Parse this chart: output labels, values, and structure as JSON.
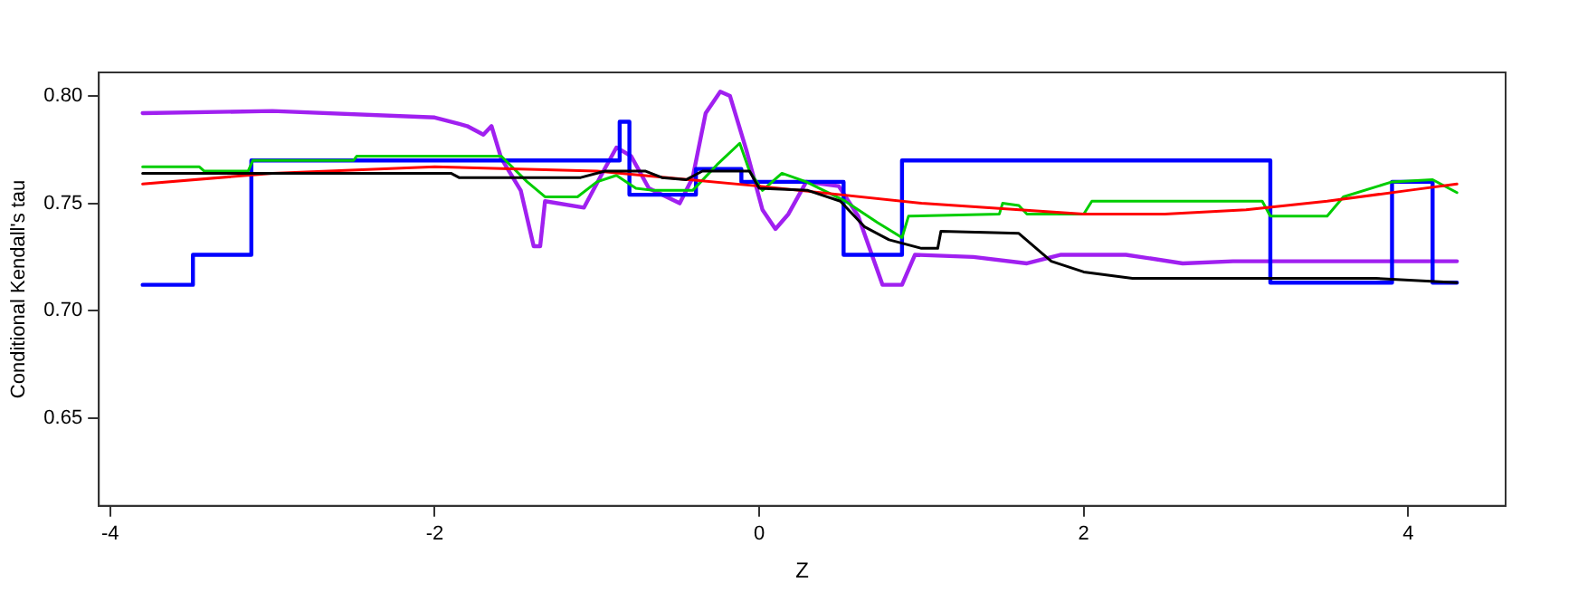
{
  "chart_data": {
    "type": "line",
    "xlabel": "Z",
    "ylabel": "Conditional Kendall's tau",
    "xlim": [
      -4.07,
      4.6
    ],
    "ylim": [
      0.609,
      0.811
    ],
    "xticks": [
      -4,
      -2,
      0,
      2,
      4
    ],
    "yticks": [
      0.65,
      {
        "value": 0.7,
        "label": "0.70"
      },
      0.75,
      {
        "value": 0.8,
        "label": "0.80"
      }
    ],
    "grid": false,
    "legend": false,
    "marker": "none",
    "line_style": "solid",
    "series": [
      {
        "color": "#000000",
        "x": [
          -3.8,
          -1.9,
          -1.85,
          -1.1,
          -0.95,
          -0.7,
          -0.6,
          -0.45,
          -0.35,
          -0.06,
          0.0,
          0.3,
          0.5,
          0.65,
          0.8,
          1.0,
          1.1,
          1.12,
          1.6,
          1.8,
          2.0,
          2.3,
          3.8,
          4.3
        ],
        "values": [
          0.764,
          0.764,
          0.762,
          0.762,
          0.765,
          0.765,
          0.762,
          0.761,
          0.765,
          0.765,
          0.757,
          0.756,
          0.751,
          0.739,
          0.733,
          0.729,
          0.729,
          0.737,
          0.736,
          0.723,
          0.718,
          0.715,
          0.715,
          0.713
        ]
      },
      {
        "color": "#ff0000",
        "x": [
          -3.8,
          -3,
          -2,
          -1,
          0,
          1,
          2,
          2.5,
          3,
          3.5,
          4,
          4.3
        ],
        "values": [
          0.759,
          0.764,
          0.767,
          0.765,
          0.758,
          0.75,
          0.745,
          0.745,
          0.747,
          0.751,
          0.756,
          0.759
        ]
      },
      {
        "color": "#00cd00",
        "x": [
          -3.8,
          -3.45,
          -3.42,
          -3.15,
          -3.12,
          -2.5,
          -2.48,
          -1.59,
          -1.43,
          -1.32,
          -1.12,
          -1.0,
          -0.88,
          -0.76,
          -0.65,
          -0.41,
          -0.26,
          -0.12,
          -0.06,
          0.02,
          0.14,
          0.29,
          0.53,
          0.73,
          0.88,
          0.92,
          1.48,
          1.5,
          1.6,
          1.65,
          2.0,
          2.05,
          3.1,
          3.15,
          3.5,
          3.6,
          3.9,
          4.15,
          4.3
        ],
        "values": [
          0.767,
          0.767,
          0.765,
          0.765,
          0.77,
          0.77,
          0.772,
          0.772,
          0.76,
          0.753,
          0.753,
          0.76,
          0.763,
          0.757,
          0.756,
          0.756,
          0.768,
          0.778,
          0.765,
          0.756,
          0.764,
          0.76,
          0.751,
          0.741,
          0.734,
          0.744,
          0.745,
          0.75,
          0.749,
          0.745,
          0.745,
          0.751,
          0.751,
          0.744,
          0.744,
          0.753,
          0.76,
          0.761,
          0.755
        ]
      },
      {
        "type": "step",
        "color": "#0000ff",
        "x": [
          -3.8,
          -3.49,
          -3.13,
          -0.86,
          -0.8,
          -0.39,
          -0.11,
          0.52,
          0.88,
          3.15,
          3.9,
          4.15,
          4.3
        ],
        "values": [
          0.712,
          0.726,
          0.77,
          0.788,
          0.754,
          0.766,
          0.76,
          0.726,
          0.77,
          0.713,
          0.76,
          0.713,
          0.713
        ]
      },
      {
        "color": "#a020f0",
        "x": [
          -3.8,
          -3.0,
          -2.0,
          -1.8,
          -1.7,
          -1.65,
          -1.59,
          -1.47,
          -1.39,
          -1.35,
          -1.32,
          -1.08,
          -0.96,
          -0.88,
          -0.79,
          -0.68,
          -0.49,
          -0.41,
          -0.33,
          -0.24,
          -0.18,
          -0.08,
          0.02,
          0.1,
          0.18,
          0.29,
          0.49,
          0.61,
          0.76,
          0.88,
          0.96,
          1.32,
          1.65,
          1.86,
          2.26,
          2.61,
          2.92,
          4.3
        ],
        "values": [
          0.792,
          0.793,
          0.79,
          0.786,
          0.782,
          0.786,
          0.771,
          0.756,
          0.73,
          0.73,
          0.751,
          0.748,
          0.765,
          0.776,
          0.772,
          0.757,
          0.75,
          0.762,
          0.792,
          0.802,
          0.8,
          0.775,
          0.747,
          0.738,
          0.745,
          0.76,
          0.758,
          0.744,
          0.712,
          0.712,
          0.726,
          0.725,
          0.722,
          0.726,
          0.726,
          0.722,
          0.723,
          0.723
        ]
      }
    ]
  }
}
